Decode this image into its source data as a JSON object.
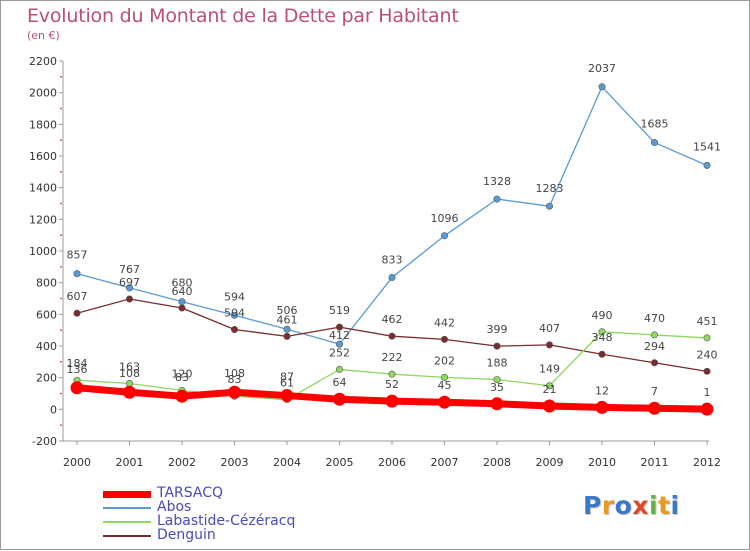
{
  "title": "Evolution du Montant de la Dette par Habitant",
  "subtitle": "(en €)",
  "logo": {
    "letters": [
      "P",
      "r",
      "o",
      "x",
      "i",
      "t",
      "i"
    ],
    "colors": [
      "#3a78c8",
      "#e89a24",
      "#3a78c8",
      "#e04a2a",
      "#6ab04a",
      "#e89a24",
      "#3a78c8"
    ]
  },
  "chart_data": {
    "type": "line",
    "x": [
      "2000",
      "2001",
      "2002",
      "2003",
      "2004",
      "2005",
      "2006",
      "2007",
      "2008",
      "2009",
      "2010",
      "2011",
      "2012"
    ],
    "ylim": [
      -200,
      2200
    ],
    "yticks": [
      "-200",
      "0",
      "200",
      "400",
      "600",
      "800",
      "1000",
      "1200",
      "1400",
      "1600",
      "1800",
      "2000",
      "2200"
    ],
    "grid": false,
    "legend_position": "bottom-left",
    "series": [
      {
        "name": "TARSACQ",
        "color": "#ff0000",
        "values": [
          136,
          108,
          83,
          108,
          87,
          64,
          52,
          45,
          35,
          21,
          12,
          7,
          1
        ],
        "labels": [
          "136",
          "108",
          "83",
          "108",
          "87",
          "64",
          "52",
          "45",
          "35",
          "21",
          "12",
          "7",
          "1"
        ]
      },
      {
        "name": "Abos",
        "color": "#5b9bd5",
        "values": [
          857,
          767,
          680,
          594,
          506,
          412,
          833,
          1096,
          1328,
          1283,
          2037,
          1685,
          1541
        ],
        "labels": [
          "857",
          "767",
          "680",
          "594",
          "506",
          "412",
          "833",
          "1096",
          "1328",
          "1283",
          "2037",
          "1685",
          "1541"
        ]
      },
      {
        "name": "Labastide-Cézéracq",
        "color": "#90d860",
        "values": [
          184,
          163,
          120,
          83,
          61,
          252,
          222,
          202,
          188,
          149,
          490,
          470,
          451
        ],
        "labels": [
          "184",
          "163",
          "120",
          "83",
          "61",
          "252",
          "222",
          "202",
          "188",
          "149",
          "490",
          "470",
          "451"
        ]
      },
      {
        "name": "Denguin",
        "color": "#7b2c2c",
        "values": [
          607,
          697,
          640,
          504,
          461,
          519,
          462,
          442,
          399,
          407,
          348,
          294,
          240
        ],
        "labels": [
          "607",
          "697",
          "640",
          "504",
          "461",
          "519",
          "462",
          "442",
          "399",
          "407",
          "348",
          "294",
          "240"
        ]
      }
    ]
  }
}
